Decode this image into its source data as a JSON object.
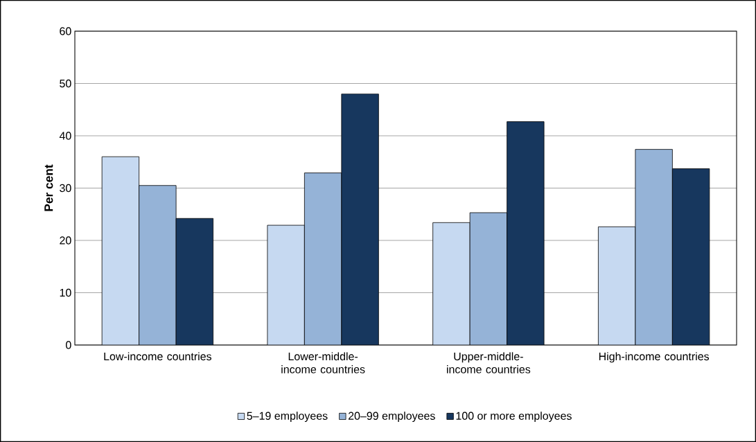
{
  "chart_data": {
    "type": "bar",
    "ylabel": "Per cent",
    "categories": [
      "Low-income countries",
      "Lower-middle-income countries",
      "Upper-middle-income countries",
      "High-income countries"
    ],
    "series": [
      {
        "name": "5–19 employees",
        "color": "#c6d9f1",
        "values": [
          36.0,
          22.9,
          23.4,
          22.6
        ]
      },
      {
        "name": "20–99 employees",
        "color": "#95b3d7",
        "values": [
          30.5,
          32.9,
          25.3,
          37.4
        ]
      },
      {
        "name": "100 or more employees",
        "color": "#17375e",
        "values": [
          24.2,
          48.0,
          42.7,
          33.7
        ]
      }
    ],
    "ylim": [
      0,
      60
    ],
    "yticks": [
      0,
      10,
      20,
      30,
      40,
      50,
      60
    ],
    "grid": "y",
    "legend": "bottom"
  }
}
